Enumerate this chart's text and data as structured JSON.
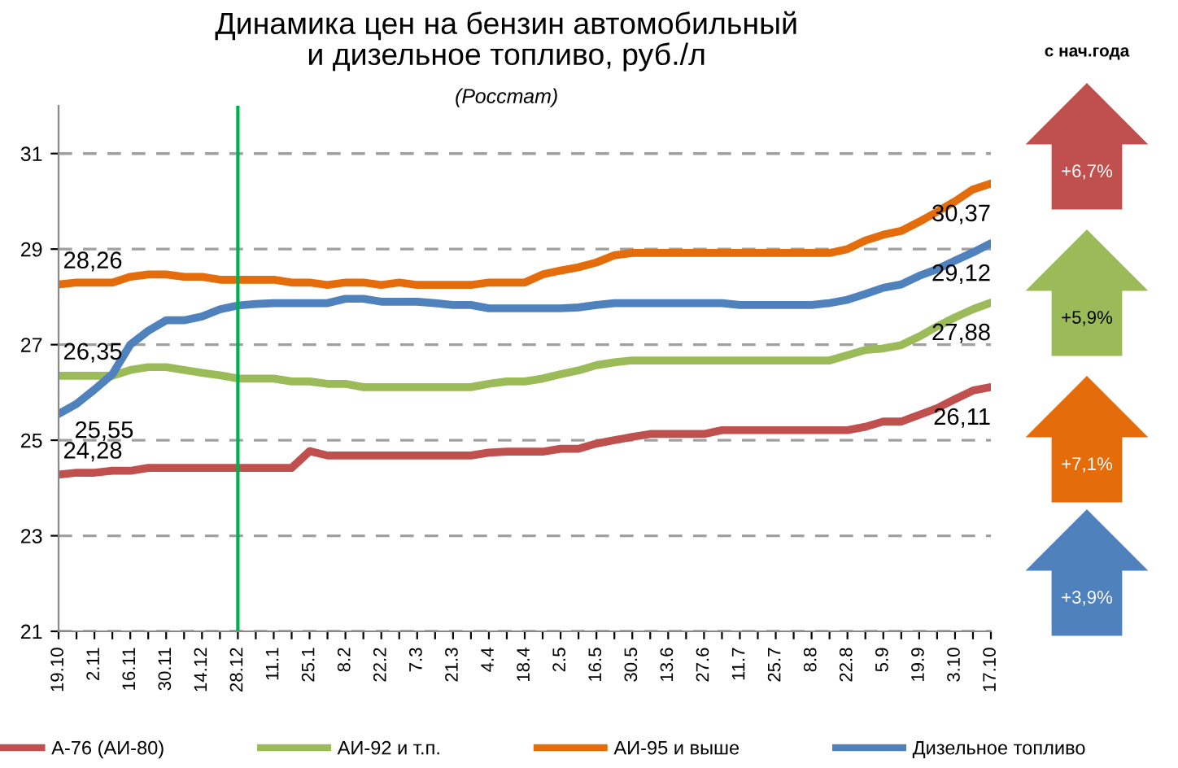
{
  "chart_data": {
    "type": "line",
    "title": "Динамика цен на бензин автомобильный\nи дизельное топливо, руб./л",
    "subtitle": "(Росстат)",
    "categories": [
      "19.10",
      null,
      "2.11",
      null,
      "16.11",
      null,
      "30.11",
      null,
      "14.12",
      null,
      "28.12",
      null,
      "11.1",
      null,
      "25.1",
      null,
      "8.2",
      null,
      "22.2",
      null,
      "7.3",
      null,
      "21.3",
      null,
      "4.4",
      null,
      "18.4",
      null,
      "2.5",
      null,
      "16.5",
      null,
      "30.5",
      null,
      "13.6",
      null,
      "27.6",
      null,
      "11.7",
      null,
      "25.7",
      null,
      "8.8",
      null,
      "22.8",
      null,
      "5.9",
      null,
      "19.9",
      null,
      "3.10",
      null,
      "17.10"
    ],
    "series": [
      {
        "name": "А-76 (АИ-80)",
        "color": "#c0504d",
        "values": [
          24.28,
          24.32,
          24.32,
          24.36,
          24.36,
          24.42,
          24.42,
          24.42,
          24.42,
          24.42,
          24.42,
          24.42,
          24.42,
          24.42,
          24.77,
          24.68,
          24.68,
          24.68,
          24.68,
          24.68,
          24.68,
          24.68,
          24.68,
          24.68,
          24.74,
          24.76,
          24.76,
          24.76,
          24.82,
          24.82,
          24.93,
          25.0,
          25.07,
          25.13,
          25.13,
          25.13,
          25.13,
          25.21,
          25.21,
          25.21,
          25.21,
          25.21,
          25.21,
          25.21,
          25.21,
          25.28,
          25.39,
          25.39,
          25.53,
          25.67,
          25.86,
          26.04,
          26.11
        ],
        "value_labels": [
          "24,28",
          null,
          null,
          null,
          null,
          null,
          null,
          null,
          null,
          null,
          null,
          null,
          null,
          null,
          null,
          null,
          null,
          null,
          null,
          null,
          null,
          null,
          null,
          null,
          null,
          null,
          null,
          null,
          null,
          null,
          null,
          null,
          null,
          null,
          null,
          null,
          null,
          null,
          null,
          null,
          null,
          null,
          null,
          null,
          null,
          null,
          null,
          null,
          null,
          null,
          null,
          null,
          "26,11"
        ]
      },
      {
        "name": "АИ-92 и т.п.",
        "color": "#9bbb59",
        "values": [
          26.35,
          26.35,
          26.35,
          26.35,
          26.47,
          26.53,
          26.53,
          26.47,
          26.41,
          26.36,
          26.29,
          26.29,
          26.29,
          26.23,
          26.23,
          26.18,
          26.18,
          26.11,
          26.11,
          26.11,
          26.11,
          26.11,
          26.11,
          26.11,
          26.18,
          26.23,
          26.23,
          26.29,
          26.38,
          26.46,
          26.57,
          26.63,
          26.67,
          26.67,
          26.67,
          26.67,
          26.67,
          26.67,
          26.67,
          26.67,
          26.67,
          26.67,
          26.67,
          26.67,
          26.78,
          26.89,
          26.92,
          26.99,
          27.17,
          27.38,
          27.57,
          27.74,
          27.88
        ],
        "value_labels": [
          "26,35",
          null,
          null,
          null,
          null,
          null,
          null,
          null,
          null,
          null,
          null,
          null,
          null,
          null,
          null,
          null,
          null,
          null,
          null,
          null,
          null,
          null,
          null,
          null,
          null,
          null,
          null,
          null,
          null,
          null,
          null,
          null,
          null,
          null,
          null,
          null,
          null,
          null,
          null,
          null,
          null,
          null,
          null,
          null,
          null,
          null,
          null,
          null,
          null,
          null,
          null,
          null,
          "27,88"
        ]
      },
      {
        "name": "АИ-95 и выше",
        "color": "#e46c0a",
        "values": [
          28.26,
          28.3,
          28.3,
          28.3,
          28.42,
          28.47,
          28.47,
          28.42,
          28.42,
          28.36,
          28.36,
          28.36,
          28.36,
          28.3,
          28.3,
          28.25,
          28.3,
          28.3,
          28.25,
          28.3,
          28.25,
          28.25,
          28.25,
          28.25,
          28.3,
          28.3,
          28.3,
          28.47,
          28.55,
          28.62,
          28.72,
          28.87,
          28.92,
          28.92,
          28.92,
          28.92,
          28.92,
          28.92,
          28.92,
          28.92,
          28.92,
          28.92,
          28.92,
          28.92,
          29.0,
          29.18,
          29.3,
          29.38,
          29.57,
          29.78,
          30.0,
          30.25,
          30.37
        ],
        "value_labels": [
          "28,26",
          null,
          null,
          null,
          null,
          null,
          null,
          null,
          null,
          null,
          null,
          null,
          null,
          null,
          null,
          null,
          null,
          null,
          null,
          null,
          null,
          null,
          null,
          null,
          null,
          null,
          null,
          null,
          null,
          null,
          null,
          null,
          null,
          null,
          null,
          null,
          null,
          null,
          null,
          null,
          null,
          null,
          null,
          null,
          null,
          null,
          null,
          null,
          null,
          null,
          null,
          null,
          "30,37"
        ]
      },
      {
        "name": "Дизельное топливо",
        "color": "#4f81bd",
        "values": [
          25.55,
          25.76,
          26.06,
          26.38,
          27.0,
          27.29,
          27.51,
          27.51,
          27.59,
          27.74,
          27.82,
          27.85,
          27.87,
          27.87,
          27.87,
          27.87,
          27.96,
          27.96,
          27.9,
          27.9,
          27.9,
          27.87,
          27.83,
          27.83,
          27.76,
          27.76,
          27.76,
          27.76,
          27.76,
          27.78,
          27.83,
          27.87,
          27.87,
          27.87,
          27.87,
          27.87,
          27.87,
          27.87,
          27.83,
          27.83,
          27.83,
          27.83,
          27.83,
          27.87,
          27.94,
          28.06,
          28.19,
          28.26,
          28.44,
          28.58,
          28.76,
          28.93,
          29.12
        ],
        "value_labels": [
          "25,55",
          null,
          null,
          null,
          null,
          null,
          null,
          null,
          null,
          null,
          null,
          null,
          null,
          null,
          null,
          null,
          null,
          null,
          null,
          null,
          null,
          null,
          null,
          null,
          null,
          null,
          null,
          null,
          null,
          null,
          null,
          null,
          null,
          null,
          null,
          null,
          null,
          null,
          null,
          null,
          null,
          null,
          null,
          null,
          null,
          null,
          null,
          null,
          null,
          null,
          null,
          null,
          "29,12"
        ]
      }
    ],
    "ylim": [
      21,
      32
    ],
    "yticks": [
      21,
      23,
      25,
      27,
      29,
      31
    ],
    "grid": "y",
    "legend": "bottom",
    "marker": "none",
    "line_style": "solid",
    "ref_lines": [
      {
        "axis": "x",
        "value": "28.12",
        "color": "#00b050"
      }
    ],
    "annotations": [
      "с нач.года",
      "+6,7%",
      "+5,9%",
      "+7,1%",
      "+3,9%"
    ]
  }
}
